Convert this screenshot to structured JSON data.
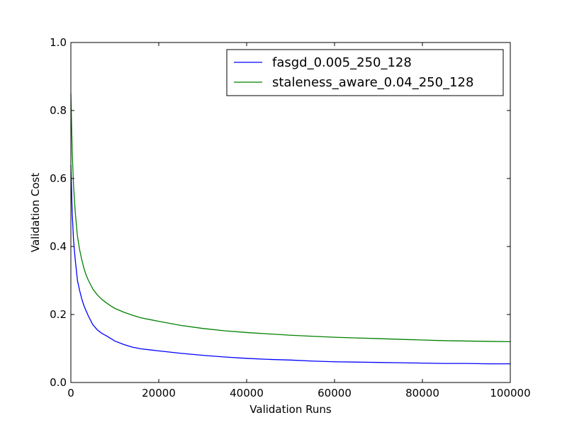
{
  "chart_data": {
    "type": "line",
    "title": "",
    "xlabel": "Validation Runs",
    "ylabel": "Validation Cost",
    "xlim": [
      0,
      100000
    ],
    "ylim": [
      0.0,
      1.0
    ],
    "x_ticks": [
      0,
      20000,
      40000,
      60000,
      80000,
      100000
    ],
    "x_tick_labels": [
      "0",
      "20000",
      "40000",
      "60000",
      "80000",
      "100000"
    ],
    "y_ticks": [
      0.0,
      0.2,
      0.4,
      0.6,
      0.8,
      1.0
    ],
    "y_tick_labels": [
      "0.0",
      "0.2",
      "0.4",
      "0.6",
      "0.8",
      "1.0"
    ],
    "grid": false,
    "legend_position": "top-right",
    "series": [
      {
        "name": "fasgd_0.005_250_128",
        "color": "#0000ff",
        "x": [
          0,
          300,
          600,
          1000,
          1500,
          2000,
          2500,
          3000,
          3500,
          4000,
          5000,
          6000,
          7000,
          8000,
          9000,
          10000,
          12000,
          14000,
          16000,
          18000,
          20000,
          25000,
          30000,
          35000,
          40000,
          45000,
          50000,
          55000,
          60000,
          65000,
          70000,
          75000,
          80000,
          85000,
          90000,
          95000,
          100000
        ],
        "y": [
          0.64,
          0.5,
          0.42,
          0.36,
          0.3,
          0.27,
          0.245,
          0.225,
          0.21,
          0.195,
          0.17,
          0.155,
          0.145,
          0.138,
          0.13,
          0.122,
          0.112,
          0.104,
          0.099,
          0.096,
          0.093,
          0.086,
          0.08,
          0.075,
          0.071,
          0.068,
          0.066,
          0.063,
          0.061,
          0.06,
          0.059,
          0.058,
          0.057,
          0.056,
          0.056,
          0.055,
          0.055
        ]
      },
      {
        "name": "staleness_aware_0.04_250_128",
        "color": "#008000",
        "x": [
          0,
          300,
          600,
          1000,
          1500,
          2000,
          2500,
          3000,
          3500,
          4000,
          5000,
          6000,
          7000,
          8000,
          9000,
          10000,
          12000,
          14000,
          16000,
          18000,
          20000,
          25000,
          30000,
          35000,
          40000,
          45000,
          50000,
          55000,
          60000,
          65000,
          70000,
          75000,
          80000,
          85000,
          90000,
          95000,
          100000
        ],
        "y": [
          0.85,
          0.68,
          0.58,
          0.5,
          0.43,
          0.39,
          0.36,
          0.335,
          0.315,
          0.3,
          0.275,
          0.258,
          0.245,
          0.235,
          0.226,
          0.218,
          0.207,
          0.198,
          0.19,
          0.185,
          0.18,
          0.168,
          0.159,
          0.152,
          0.147,
          0.143,
          0.139,
          0.136,
          0.133,
          0.131,
          0.129,
          0.127,
          0.125,
          0.123,
          0.122,
          0.121,
          0.12
        ]
      }
    ]
  }
}
